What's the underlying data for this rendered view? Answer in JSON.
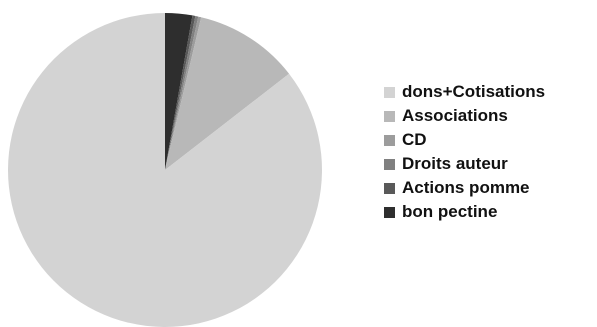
{
  "chart_data": {
    "type": "pie",
    "title": "",
    "categories": [
      "dons+Cotisations",
      "Associations",
      "CD",
      "Droits auteur",
      "Actions pomme",
      "bon pectine"
    ],
    "values": [
      85.5,
      10.8,
      0.3,
      0.3,
      0.3,
      2.8
    ],
    "colors": [
      "#d3d3d3",
      "#b8b8b8",
      "#9c9c9c",
      "#808080",
      "#595959",
      "#2e2e2e"
    ],
    "slice_order": [
      5,
      4,
      3,
      2,
      1,
      0
    ],
    "start_angle_deg": 0,
    "direction": "clockwise",
    "legend_position": "right"
  }
}
